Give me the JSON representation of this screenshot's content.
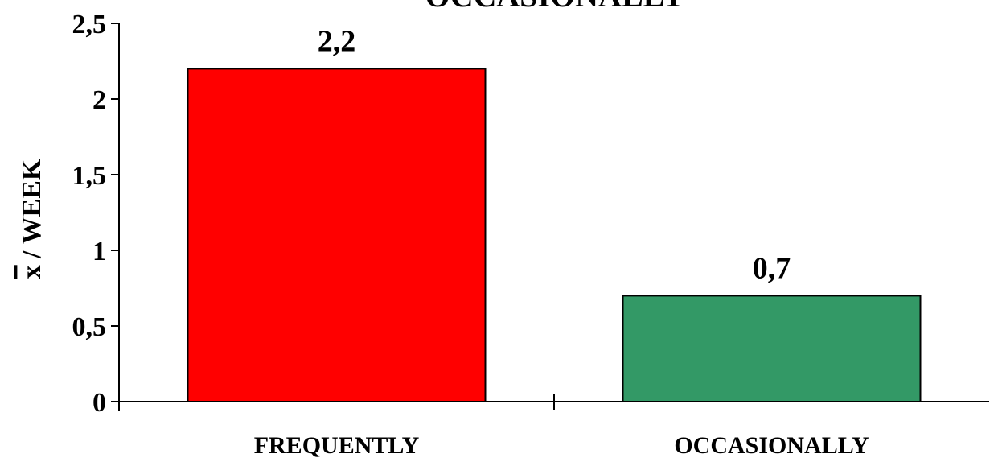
{
  "chart_data": {
    "type": "bar",
    "title": "OCCASIONALLY",
    "ylabel": "x / WEEK",
    "ylabel_overline_char": "x",
    "ylabel_rest": " / WEEK",
    "xlabel": "",
    "categories": [
      "FREQUENTLY",
      "OCCASIONALLY"
    ],
    "values": [
      2.2,
      0.7
    ],
    "data_labels": [
      "2,2",
      "0,7"
    ],
    "colors": [
      "#ff0000",
      "#339966"
    ],
    "ylim": [
      0,
      2.5
    ],
    "yticks": [
      0,
      0.5,
      1,
      1.5,
      2,
      2.5
    ],
    "ytick_labels": [
      "0",
      "0,5",
      "1",
      "1,5",
      "2",
      "2,5"
    ],
    "grid": false,
    "legend": "none"
  }
}
